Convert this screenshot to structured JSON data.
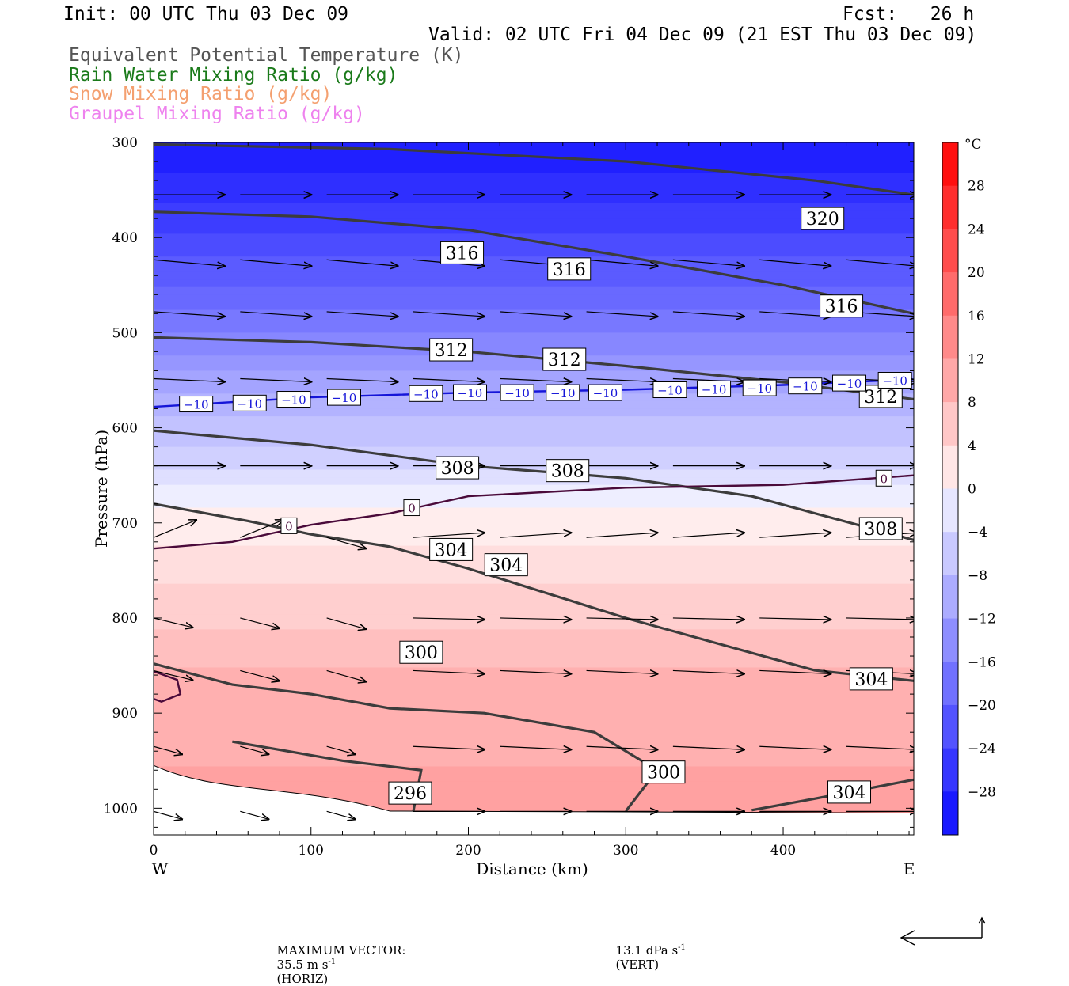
{
  "header": {
    "init": "Init: 00 UTC Thu 03 Dec 09",
    "fcst": "Fcst:   26 h",
    "valid": "Valid: 02 UTC Fri 04 Dec 09 (21 EST Thu 03 Dec 09)",
    "legend": [
      {
        "text": "Equivalent Potential Temperature (K)",
        "color": "#555555"
      },
      {
        "text": "Rain Water Mixing Ratio (g/kg)",
        "color": "#1a7a1a"
      },
      {
        "text": "Snow Mixing Ratio (g/kg)",
        "color": "#f4a070"
      },
      {
        "text": "Graupel Mixing Ratio (g/kg)",
        "color": "#ee82ee"
      }
    ]
  },
  "chart_data": {
    "type": "cross-section",
    "xlabel": "Distance (km)",
    "ylabel": "Pressure (hPa)",
    "x_range": [
      0,
      483
    ],
    "x_ticks": [
      0,
      100,
      200,
      300,
      400
    ],
    "y_range_hPa": [
      300,
      1028
    ],
    "y_ticks": [
      300,
      400,
      500,
      600,
      700,
      800,
      900,
      1000
    ],
    "left_end": "W",
    "right_end": "E",
    "colorbar": {
      "unit": "°C",
      "labels": [
        28,
        24,
        20,
        16,
        12,
        8,
        4,
        0,
        -4,
        -8,
        -12,
        -16,
        -20,
        -24,
        -28
      ],
      "range": [
        -32,
        32
      ]
    },
    "temperature_shading": [
      {
        "pressure": 300,
        "temp_c": -30
      },
      {
        "pressure": 420,
        "temp_c": -22
      },
      {
        "pressure": 500,
        "temp_c": -16
      },
      {
        "pressure": 560,
        "temp_c": -10
      },
      {
        "pressure": 640,
        "temp_c": -4
      },
      {
        "pressure": 680,
        "temp_c": 0
      },
      {
        "pressure": 760,
        "temp_c": 4
      },
      {
        "pressure": 850,
        "temp_c": 8
      },
      {
        "pressure": 950,
        "temp_c": 10
      },
      {
        "pressure": 1000,
        "temp_c": 12
      }
    ],
    "theta_e_contours": [
      {
        "value": 320,
        "points": [
          [
            0,
            302
          ],
          [
            150,
            307
          ],
          [
            300,
            320
          ],
          [
            420,
            340
          ],
          [
            483,
            355
          ]
        ],
        "labels": [
          [
            425,
            380
          ]
        ]
      },
      {
        "value": 316,
        "points": [
          [
            0,
            373
          ],
          [
            100,
            378
          ],
          [
            200,
            392
          ],
          [
            300,
            420
          ],
          [
            400,
            450
          ],
          [
            483,
            480
          ]
        ],
        "labels": [
          [
            196,
            416
          ],
          [
            264,
            433
          ],
          [
            437,
            472
          ]
        ]
      },
      {
        "value": 312,
        "points": [
          [
            0,
            505
          ],
          [
            100,
            510
          ],
          [
            200,
            520
          ],
          [
            300,
            535
          ],
          [
            400,
            552
          ],
          [
            483,
            570
          ]
        ],
        "labels": [
          [
            189,
            518
          ],
          [
            261,
            528
          ],
          [
            462,
            567
          ]
        ]
      },
      {
        "value": 308,
        "points": [
          [
            0,
            603
          ],
          [
            100,
            618
          ],
          [
            200,
            640
          ],
          [
            300,
            653
          ],
          [
            380,
            672
          ],
          [
            483,
            718
          ]
        ],
        "labels": [
          [
            193,
            642
          ],
          [
            263,
            645
          ],
          [
            462,
            706
          ]
        ]
      },
      {
        "value": 304,
        "points": [
          [
            0,
            680
          ],
          [
            60,
            698
          ],
          [
            100,
            712
          ],
          [
            150,
            725
          ],
          [
            200,
            748
          ],
          [
            300,
            800
          ],
          [
            420,
            855
          ],
          [
            483,
            866
          ]
        ],
        "labels": [
          [
            189,
            728
          ],
          [
            224,
            744
          ],
          [
            456,
            864
          ]
        ]
      },
      {
        "value": 304,
        "points": [
          [
            380,
            1002
          ],
          [
            420,
            990
          ],
          [
            483,
            970
          ]
        ],
        "labels": [
          [
            442,
            983
          ]
        ]
      },
      {
        "value": 300,
        "points": [
          [
            0,
            848
          ],
          [
            50,
            870
          ],
          [
            100,
            880
          ],
          [
            150,
            895
          ],
          [
            210,
            900
          ],
          [
            280,
            920
          ],
          [
            320,
            960
          ],
          [
            300,
            1003
          ]
        ],
        "labels": [
          [
            170,
            836
          ],
          [
            324,
            962
          ]
        ]
      },
      {
        "value": 296,
        "points": [
          [
            50,
            930
          ],
          [
            120,
            950
          ],
          [
            170,
            960
          ],
          [
            165,
            1003
          ]
        ],
        "labels": [
          [
            163,
            984
          ]
        ]
      }
    ],
    "isotherm_contours": [
      {
        "value": -10,
        "color": "#1515d8",
        "points": [
          [
            0,
            578
          ],
          [
            100,
            568
          ],
          [
            200,
            563
          ],
          [
            300,
            560
          ],
          [
            400,
            555
          ],
          [
            483,
            549
          ]
        ],
        "labels": [
          [
            27,
            575
          ],
          [
            61,
            574
          ],
          [
            89,
            570
          ],
          [
            121,
            568
          ],
          [
            173,
            564
          ],
          [
            201,
            563
          ],
          [
            231,
            563
          ],
          [
            260,
            563
          ],
          [
            287,
            563
          ],
          [
            328,
            560
          ],
          [
            356,
            559
          ],
          [
            385,
            558
          ],
          [
            414,
            556
          ],
          [
            442,
            553
          ],
          [
            471,
            550
          ]
        ]
      },
      {
        "value": 0,
        "color": "#4a0a3a",
        "points": [
          [
            0,
            727
          ],
          [
            50,
            720
          ],
          [
            100,
            702
          ],
          [
            150,
            690
          ],
          [
            200,
            672
          ],
          [
            300,
            663
          ],
          [
            400,
            660
          ],
          [
            483,
            650
          ]
        ],
        "labels": [
          [
            86,
            703
          ],
          [
            164,
            684
          ],
          [
            464,
            653
          ]
        ]
      },
      {
        "value": 0,
        "color": "#4a0a3a",
        "points": [
          [
            0,
            856
          ],
          [
            15,
            865
          ],
          [
            17,
            880
          ],
          [
            5,
            888
          ],
          [
            0,
            885
          ]
        ],
        "labels": []
      }
    ],
    "wind_vectors_note": "Horizontal-vertical circulation vectors, predominantly W→E",
    "max_vector": {
      "label": "MAXIMUM VECTOR:",
      "horiz_value": "35.5 m s",
      "horiz_unit_exp": "-1",
      "horiz_tag": "(HORIZ)",
      "vert_value": "13.1 dPa s",
      "vert_unit_exp": "-1",
      "vert_tag": "(VERT)"
    }
  }
}
